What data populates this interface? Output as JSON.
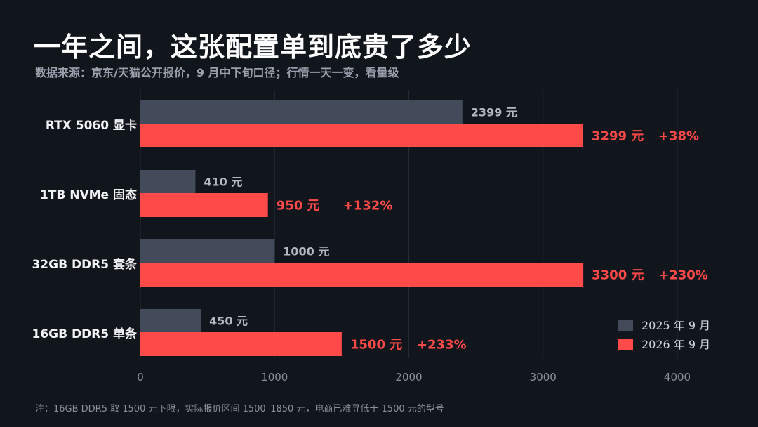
{
  "header": {
    "title": "一年之间，这张配置单到底贵了多少",
    "subtitle": "数据来源：京东/天猫公开报价，9 月中下旬口径；行情一天一变，看量级"
  },
  "footnote": "注：16GB DDR5 取 1500 元下限，实际报价区间 1500–1850 元，电商已难寻低于 1500 元的型号",
  "chart_data": {
    "type": "bar",
    "orientation": "horizontal",
    "categories": [
      "RTX 5060 显卡",
      "1TB NVMe 固态",
      "32GB DDR5 套条",
      "16GB DDR5 单条"
    ],
    "series": [
      {
        "name": "2025 年 9 月",
        "color": "#434a5a",
        "values": [
          2399,
          410,
          1000,
          450
        ],
        "labels": [
          "2399 元",
          "410 元",
          "1000 元",
          "450 元"
        ]
      },
      {
        "name": "2026 年 9 月",
        "color": "#ff4a4a",
        "values": [
          3299,
          950,
          3300,
          1500
        ],
        "labels": [
          "3299 元",
          "950 元",
          "3300 元",
          "1500 元"
        ],
        "changes": [
          "+38%",
          "+132%",
          "+230%",
          "+233%"
        ]
      }
    ],
    "xlim": [
      0,
      4000
    ],
    "xticks": [
      0,
      1000,
      2000,
      3000,
      4000
    ],
    "xtick_labels": [
      "0",
      "1000",
      "2000",
      "3000",
      "4000"
    ],
    "grid": true,
    "legend_position": "bottom-right"
  }
}
